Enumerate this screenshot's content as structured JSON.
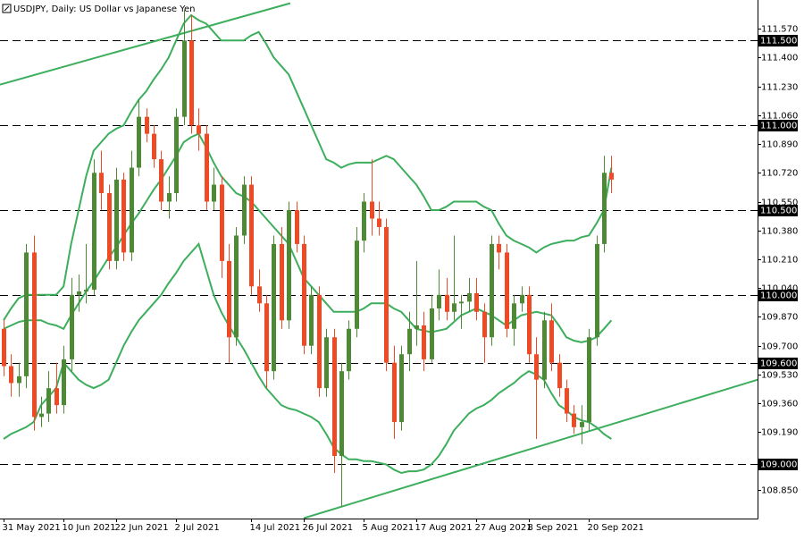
{
  "chart_data": {
    "type": "candlestick",
    "title": "USDJPY, Daily:  US Dollar vs Japanese Yen",
    "up_color": "#4e8a35",
    "down_color": "#ee4a26",
    "ylim": [
      108.681,
      111.739
    ],
    "yticks": [
      {
        "value": 111.57,
        "label": "111.570"
      },
      {
        "value": 111.4,
        "label": "111.400"
      },
      {
        "value": 111.23,
        "label": "111.230"
      },
      {
        "value": 111.06,
        "label": "111.060"
      },
      {
        "value": 110.89,
        "label": "110.890"
      },
      {
        "value": 110.72,
        "label": "110.720"
      },
      {
        "value": 110.55,
        "label": "110.550"
      },
      {
        "value": 110.38,
        "label": "110.380"
      },
      {
        "value": 110.21,
        "label": "110.210"
      },
      {
        "value": 110.04,
        "label": "110.040"
      },
      {
        "value": 109.87,
        "label": "109.870"
      },
      {
        "value": 109.7,
        "label": "109.700"
      },
      {
        "value": 109.53,
        "label": "109.530"
      },
      {
        "value": 109.36,
        "label": "109.360"
      },
      {
        "value": 109.19,
        "label": "109.190"
      },
      {
        "value": 108.85,
        "label": "108.850"
      }
    ],
    "levels_color": "#000000",
    "levels": [
      {
        "value": 111.5,
        "label": "111.500"
      },
      {
        "value": 111.0,
        "label": "111.000"
      },
      {
        "value": 110.5,
        "label": "110.500"
      },
      {
        "value": 110.0,
        "label": "110.000"
      },
      {
        "value": 109.6,
        "label": "109.600"
      },
      {
        "value": 109.0,
        "label": "109.000"
      }
    ],
    "categories": [
      "31 May 2021",
      null,
      null,
      null,
      null,
      null,
      null,
      null,
      "10 Jun 2021",
      null,
      null,
      null,
      null,
      null,
      null,
      "22 Jun 2021",
      null,
      null,
      null,
      null,
      null,
      null,
      null,
      "2 Jul 2021",
      null,
      null,
      null,
      null,
      null,
      null,
      null,
      null,
      null,
      "14 Jul 2021",
      null,
      null,
      null,
      null,
      null,
      null,
      "26 Jul 2021",
      null,
      null,
      null,
      null,
      null,
      null,
      null,
      "5 Aug 2021",
      null,
      null,
      null,
      null,
      null,
      null,
      "17 Aug 2021",
      null,
      null,
      null,
      null,
      null,
      null,
      null,
      "27 Aug 2021",
      null,
      null,
      null,
      null,
      null,
      null,
      "8 Sep 2021",
      null,
      null,
      null,
      null,
      null,
      null,
      null,
      "20 Sep 2021",
      null,
      null,
      null
    ],
    "ohlc": [
      [
        109.8,
        109.85,
        109.52,
        109.58
      ],
      [
        109.58,
        109.65,
        109.4,
        109.48
      ],
      [
        109.48,
        109.6,
        109.4,
        109.52
      ],
      [
        109.52,
        110.3,
        109.45,
        110.25
      ],
      [
        110.25,
        110.35,
        109.2,
        109.28
      ],
      [
        109.28,
        109.4,
        109.22,
        109.3
      ],
      [
        109.3,
        109.55,
        109.25,
        109.45
      ],
      [
        109.45,
        109.6,
        109.3,
        109.35
      ],
      [
        109.35,
        109.7,
        109.3,
        109.62
      ],
      [
        109.62,
        110.1,
        109.55,
        110.0
      ],
      [
        110.0,
        110.12,
        109.9,
        110.02
      ],
      [
        110.02,
        110.3,
        109.95,
        110.03
      ],
      [
        110.03,
        110.8,
        110.0,
        110.72
      ],
      [
        110.72,
        110.85,
        110.5,
        110.6
      ],
      [
        110.6,
        110.65,
        110.15,
        110.2
      ],
      [
        110.2,
        110.75,
        110.15,
        110.68
      ],
      [
        110.68,
        110.72,
        110.2,
        110.25
      ],
      [
        110.25,
        110.85,
        110.2,
        110.75
      ],
      [
        110.75,
        111.15,
        110.7,
        111.05
      ],
      [
        111.05,
        111.1,
        110.9,
        110.95
      ],
      [
        110.95,
        111.0,
        110.75,
        110.8
      ],
      [
        110.8,
        110.85,
        110.5,
        110.55
      ],
      [
        110.55,
        110.7,
        110.45,
        110.6
      ],
      [
        110.6,
        111.1,
        110.55,
        111.05
      ],
      [
        111.05,
        111.68,
        111.0,
        111.5
      ],
      [
        111.5,
        111.65,
        110.95,
        111.0
      ],
      [
        111.0,
        111.1,
        110.85,
        110.95
      ],
      [
        110.95,
        111.0,
        110.5,
        110.55
      ],
      [
        110.55,
        110.75,
        110.5,
        110.65
      ],
      [
        110.65,
        110.7,
        110.1,
        110.2
      ],
      [
        110.2,
        110.3,
        109.6,
        109.75
      ],
      [
        109.75,
        110.4,
        109.7,
        110.35
      ],
      [
        110.35,
        110.7,
        110.3,
        110.65
      ],
      [
        110.65,
        110.7,
        110.0,
        110.05
      ],
      [
        110.05,
        110.15,
        109.9,
        109.95
      ],
      [
        109.95,
        110.0,
        109.45,
        109.55
      ],
      [
        109.55,
        110.35,
        109.5,
        110.3
      ],
      [
        110.3,
        110.4,
        109.8,
        109.85
      ],
      [
        109.85,
        110.55,
        109.8,
        110.5
      ],
      [
        110.5,
        110.55,
        110.25,
        110.3
      ],
      [
        110.3,
        110.35,
        109.65,
        109.7
      ],
      [
        109.7,
        110.05,
        109.65,
        110.0
      ],
      [
        110.0,
        110.05,
        109.4,
        109.45
      ],
      [
        109.45,
        109.8,
        109.4,
        109.75
      ],
      [
        109.75,
        109.8,
        108.95,
        109.05
      ],
      [
        109.05,
        109.6,
        108.75,
        109.55
      ],
      [
        109.55,
        109.85,
        109.5,
        109.8
      ],
      [
        109.8,
        110.4,
        109.75,
        110.32
      ],
      [
        110.32,
        110.6,
        110.25,
        110.55
      ],
      [
        110.55,
        110.8,
        110.35,
        110.45
      ],
      [
        110.45,
        110.55,
        110.35,
        110.4
      ],
      [
        110.4,
        110.45,
        109.55,
        109.6
      ],
      [
        109.6,
        109.7,
        109.15,
        109.25
      ],
      [
        109.25,
        109.7,
        109.2,
        109.65
      ],
      [
        109.65,
        109.9,
        109.55,
        109.8
      ],
      [
        109.8,
        110.2,
        109.7,
        109.82
      ],
      [
        109.82,
        109.9,
        109.55,
        109.62
      ],
      [
        109.62,
        110.0,
        109.6,
        109.92
      ],
      [
        109.92,
        110.15,
        109.85,
        110.0
      ],
      [
        110.0,
        110.1,
        109.85,
        109.9
      ],
      [
        109.9,
        110.35,
        109.85,
        109.95
      ],
      [
        109.95,
        110.0,
        109.8,
        109.96
      ],
      [
        109.96,
        110.1,
        109.9,
        110.01
      ],
      [
        110.01,
        110.1,
        109.85,
        109.9
      ],
      [
        109.9,
        109.95,
        109.6,
        109.75
      ],
      [
        109.75,
        110.35,
        109.7,
        110.3
      ],
      [
        110.3,
        110.35,
        110.15,
        110.25
      ],
      [
        110.25,
        110.3,
        109.75,
        109.8
      ],
      [
        109.8,
        110.0,
        109.7,
        109.95
      ],
      [
        109.95,
        110.05,
        109.9,
        110.0
      ],
      [
        110.0,
        110.05,
        109.6,
        109.65
      ],
      [
        109.65,
        109.75,
        109.15,
        109.5
      ],
      [
        109.5,
        109.9,
        109.45,
        109.85
      ],
      [
        109.85,
        109.95,
        109.55,
        109.6
      ],
      [
        109.6,
        109.65,
        109.4,
        109.45
      ],
      [
        109.45,
        109.5,
        109.25,
        109.3
      ],
      [
        109.3,
        109.35,
        109.18,
        109.22
      ],
      [
        109.22,
        109.35,
        109.12,
        109.25
      ],
      [
        109.25,
        109.8,
        109.2,
        109.75
      ],
      [
        109.75,
        110.35,
        109.7,
        110.3
      ],
      [
        110.3,
        110.82,
        110.25,
        110.72
      ],
      [
        110.72,
        110.82,
        110.6,
        110.68
      ]
    ],
    "series": [
      {
        "color": "#3cae5c",
        "values": [
          109.85,
          109.92,
          109.98,
          110.0,
          110.0,
          110.0,
          110.0,
          110.0,
          110.05,
          110.3,
          110.5,
          110.7,
          110.85,
          110.9,
          110.95,
          110.98,
          111.0,
          111.08,
          111.15,
          111.2,
          111.27,
          111.33,
          111.4,
          111.5,
          111.6,
          111.65,
          111.62,
          111.6,
          111.55,
          111.5,
          111.5,
          111.5,
          111.5,
          111.53,
          111.55,
          111.48,
          111.4,
          111.35,
          111.3,
          111.2,
          111.1,
          111.0,
          110.9,
          110.8,
          110.78,
          110.75,
          110.77,
          110.78,
          110.78,
          110.78,
          110.8,
          110.82,
          110.8,
          110.75,
          110.7,
          110.65,
          110.58,
          110.5,
          110.5,
          110.52,
          110.55,
          110.55,
          110.55,
          110.55,
          110.52,
          110.5,
          110.42,
          110.35,
          110.32,
          110.3,
          110.28,
          110.25,
          110.28,
          110.3,
          110.31,
          110.32,
          110.32,
          110.34,
          110.35,
          110.42,
          110.5,
          110.75
        ]
      },
      {
        "color": "#3cae5c",
        "values": [
          109.8,
          109.82,
          109.84,
          109.85,
          109.85,
          109.85,
          109.83,
          109.82,
          109.8,
          109.88,
          109.95,
          110.02,
          110.08,
          110.15,
          110.22,
          110.28,
          110.35,
          110.42,
          110.48,
          110.55,
          110.62,
          110.68,
          110.75,
          110.82,
          110.9,
          110.93,
          110.95,
          110.87,
          110.78,
          110.7,
          110.65,
          110.6,
          110.58,
          110.55,
          110.5,
          110.45,
          110.4,
          110.35,
          110.3,
          110.2,
          110.1,
          110.05,
          110.0,
          109.95,
          109.9,
          109.9,
          109.9,
          109.9,
          109.92,
          109.95,
          109.95,
          109.95,
          109.92,
          109.9,
          109.85,
          109.8,
          109.79,
          109.78,
          109.79,
          109.8,
          109.84,
          109.88,
          109.9,
          109.92,
          109.9,
          109.88,
          109.85,
          109.82,
          109.85,
          109.88,
          109.89,
          109.9,
          109.89,
          109.88,
          109.82,
          109.75,
          109.73,
          109.72,
          109.73,
          109.75,
          109.8,
          109.85
        ]
      },
      {
        "color": "#3cae5c",
        "values": [
          109.15,
          109.18,
          109.2,
          109.22,
          109.25,
          109.35,
          109.4,
          109.45,
          109.6,
          109.55,
          109.5,
          109.47,
          109.45,
          109.47,
          109.5,
          109.6,
          109.7,
          109.78,
          109.85,
          109.9,
          109.95,
          110.0,
          110.07,
          110.13,
          110.2,
          110.25,
          110.3,
          110.15,
          110.0,
          109.9,
          109.82,
          109.75,
          109.68,
          109.6,
          109.52,
          109.45,
          109.4,
          109.35,
          109.33,
          109.32,
          109.3,
          109.28,
          109.25,
          109.18,
          109.1,
          109.06,
          109.03,
          109.03,
          109.02,
          109.02,
          109.01,
          109.0,
          108.97,
          108.95,
          108.96,
          108.96,
          108.97,
          109.0,
          109.05,
          109.12,
          109.2,
          109.25,
          109.3,
          109.33,
          109.35,
          109.38,
          109.42,
          109.45,
          109.48,
          109.52,
          109.55,
          109.53,
          109.5,
          109.42,
          109.35,
          109.32,
          109.28,
          109.26,
          109.25,
          109.22,
          109.18,
          109.15
        ]
      }
    ],
    "trendlines_color": "#3cae5c",
    "trendlines": [
      {
        "x": [
          -0.48,
          38.2
        ],
        "y": [
          111.24,
          111.72
        ]
      },
      {
        "x": [
          40.0,
          100.5
        ],
        "y": [
          108.683,
          109.5
        ]
      }
    ]
  }
}
